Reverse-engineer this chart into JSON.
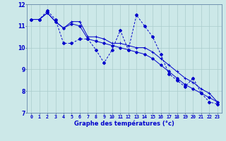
{
  "xlabel": "Graphe des températures (°c)",
  "bg_color": "#cce8e8",
  "line_color": "#0000cc",
  "xlim": [
    -0.5,
    23.5
  ],
  "ylim": [
    7,
    12
  ],
  "xticks": [
    0,
    1,
    2,
    3,
    4,
    5,
    6,
    7,
    8,
    9,
    10,
    11,
    12,
    13,
    14,
    15,
    16,
    17,
    18,
    19,
    20,
    21,
    22,
    23
  ],
  "yticks": [
    7,
    8,
    9,
    10,
    11,
    12
  ],
  "series1": {
    "x": [
      0,
      1,
      2,
      3,
      4,
      5,
      6,
      7,
      8,
      9,
      10,
      11,
      12,
      13,
      14,
      15,
      16,
      17,
      18,
      19,
      20,
      21,
      22,
      23
    ],
    "y": [
      11.3,
      11.3,
      11.7,
      11.3,
      10.2,
      10.2,
      10.4,
      10.4,
      9.9,
      9.3,
      9.9,
      10.8,
      9.9,
      11.5,
      11.0,
      10.5,
      9.7,
      8.8,
      8.5,
      8.2,
      8.6,
      7.9,
      7.5,
      7.4
    ]
  },
  "series2": {
    "x": [
      0,
      1,
      2,
      3,
      4,
      5,
      6,
      7,
      8,
      9,
      10,
      11,
      12,
      13,
      14,
      15,
      16,
      17,
      18,
      19,
      20,
      21,
      22,
      23
    ],
    "y": [
      11.3,
      11.3,
      11.6,
      11.2,
      10.9,
      11.2,
      11.2,
      10.5,
      10.5,
      10.4,
      10.2,
      10.2,
      10.1,
      10.0,
      10.0,
      9.8,
      9.5,
      9.2,
      8.9,
      8.6,
      8.4,
      8.1,
      7.9,
      7.5
    ]
  },
  "series3": {
    "x": [
      0,
      1,
      2,
      3,
      4,
      5,
      6,
      7,
      8,
      9,
      10,
      11,
      12,
      13,
      14,
      15,
      16,
      17,
      18,
      19,
      20,
      21,
      22,
      23
    ],
    "y": [
      11.3,
      11.3,
      11.6,
      11.2,
      10.9,
      11.1,
      11.0,
      10.4,
      10.3,
      10.2,
      10.1,
      10.0,
      9.9,
      9.8,
      9.7,
      9.5,
      9.2,
      8.9,
      8.6,
      8.3,
      8.1,
      7.9,
      7.7,
      7.5
    ]
  },
  "grid_color": "#aacccc",
  "spine_color": "#6688aa",
  "xlabel_fontsize": 6.0,
  "xtick_fontsize": 4.8,
  "ytick_fontsize": 5.5
}
